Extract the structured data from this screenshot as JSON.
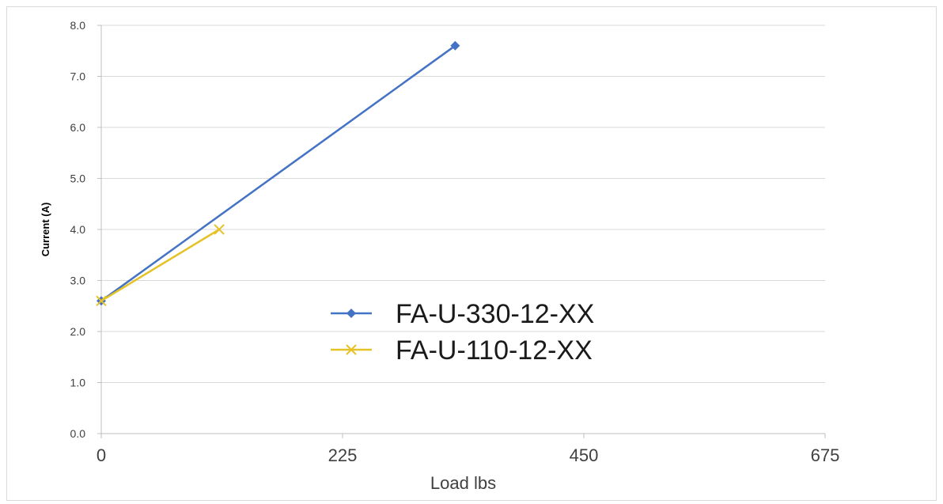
{
  "chart_data": {
    "type": "line",
    "title": "",
    "xlabel": "Load lbs",
    "ylabel": "Current (A)",
    "xlim": [
      0,
      675
    ],
    "ylim": [
      0,
      8
    ],
    "x_ticks": [
      "0",
      "225",
      "450",
      "675"
    ],
    "x_tick_values": [
      0,
      225,
      450,
      675
    ],
    "y_ticks": [
      "0.0",
      "1.0",
      "2.0",
      "3.0",
      "4.0",
      "5.0",
      "6.0",
      "7.0",
      "8.0"
    ],
    "y_tick_values": [
      0,
      1,
      2,
      3,
      4,
      5,
      6,
      7,
      8
    ],
    "grid": "horizontal",
    "legend_position": "center-right",
    "series": [
      {
        "name": "FA-U-330-12-XX",
        "color": "#4472c4",
        "marker": "diamond",
        "points": [
          [
            0,
            2.6
          ],
          [
            330,
            7.6
          ]
        ]
      },
      {
        "name": "FA-U-110-12-XX",
        "color": "#e6c229",
        "marker": "x",
        "points": [
          [
            0,
            2.6
          ],
          [
            110,
            4.0
          ]
        ]
      }
    ]
  }
}
